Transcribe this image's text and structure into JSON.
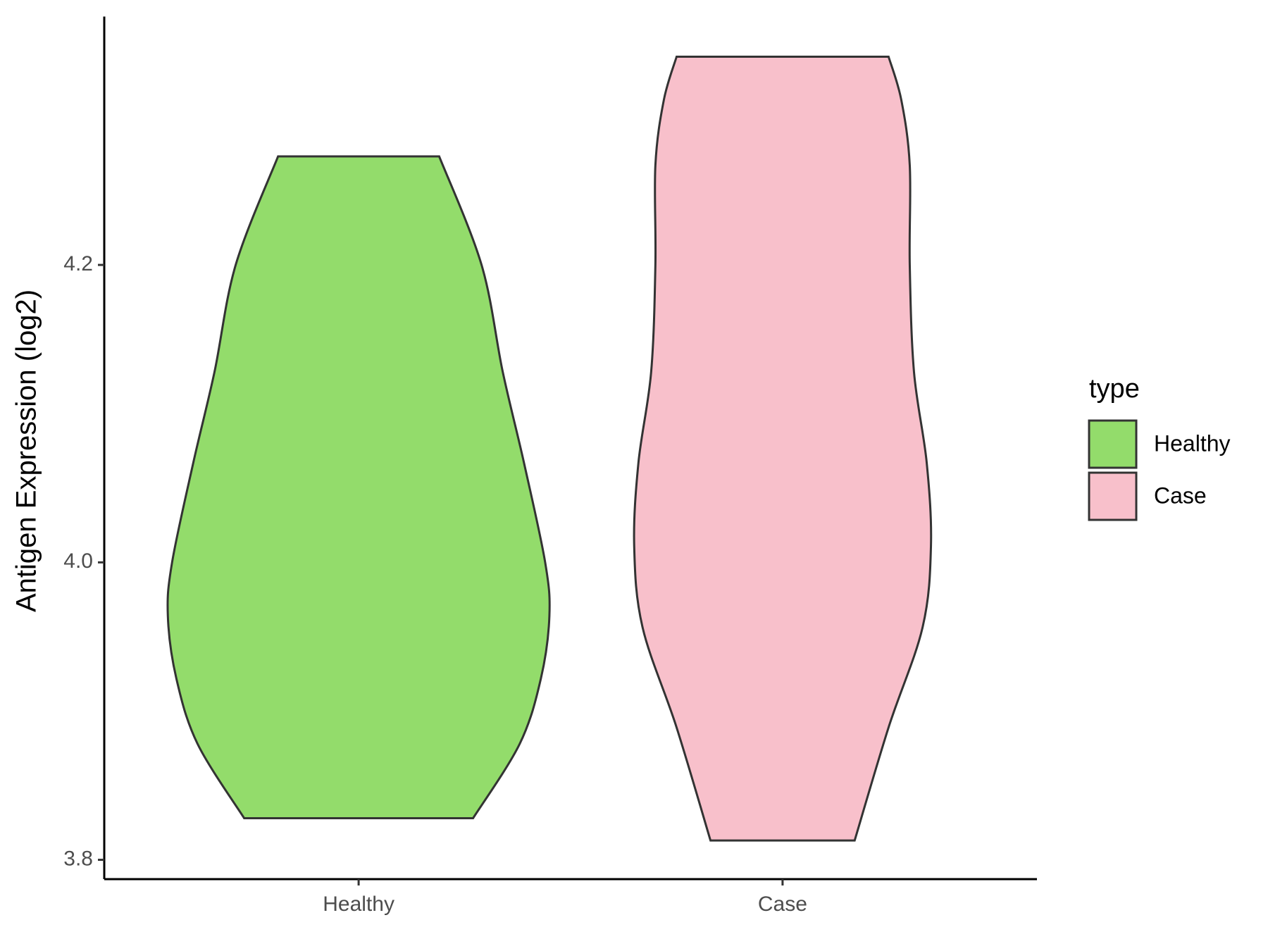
{
  "chart_data": {
    "type": "violin",
    "y_label": "Antigen Expression (log2)",
    "categories": [
      "Healthy",
      "Case"
    ],
    "legend_title": "type",
    "legend_position": "right",
    "ylim": [
      3.787,
      4.367
    ],
    "yticks": [
      {
        "value": 3.8,
        "label": "3.8"
      },
      {
        "value": 4.0,
        "label": "4.0"
      },
      {
        "value": 4.2,
        "label": "4.2"
      }
    ],
    "series": [
      {
        "name": "Healthy",
        "color": "#93dc6b",
        "y": [
          3.828,
          3.878,
          3.922,
          3.964,
          4.0,
          4.067,
          4.128,
          4.2,
          4.273
        ],
        "width": [
          0.27,
          0.38,
          0.43,
          0.45,
          0.44,
          0.39,
          0.34,
          0.29,
          0.19
        ]
      },
      {
        "name": "Case",
        "color": "#f8c0cb",
        "y": [
          3.813,
          3.889,
          3.956,
          4.011,
          4.067,
          4.128,
          4.2,
          4.267,
          4.311,
          4.34
        ],
        "width": [
          0.17,
          0.25,
          0.33,
          0.35,
          0.34,
          0.31,
          0.3,
          0.3,
          0.28,
          0.25
        ]
      }
    ]
  }
}
